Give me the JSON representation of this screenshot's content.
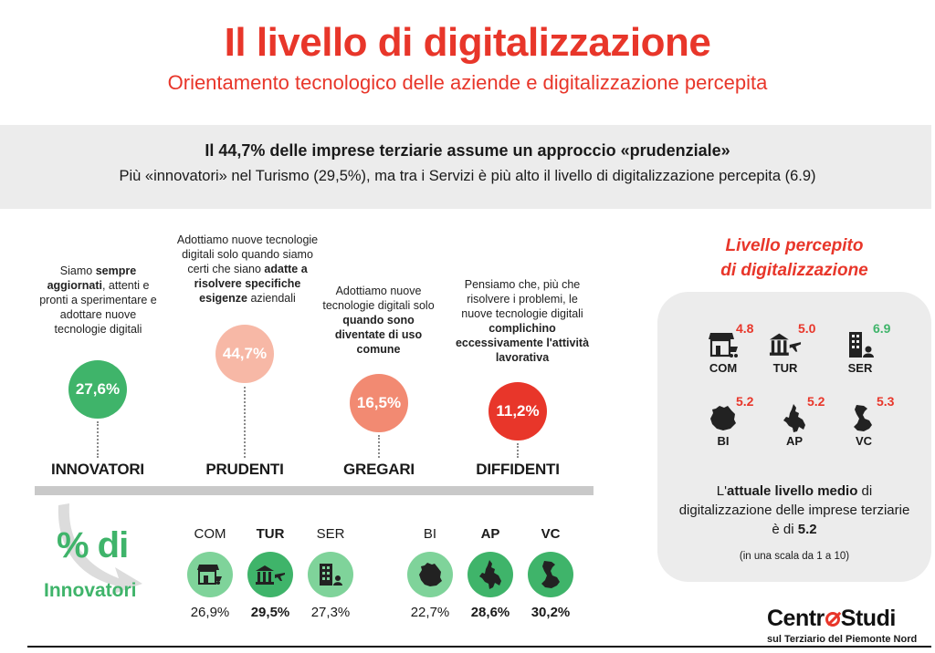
{
  "header": {
    "title": "Il livello di digitalizzazione",
    "subtitle": "Orientamento tecnologico delle aziende e digitalizzazione percepita"
  },
  "banner": {
    "headline": "Il 44,7% delle imprese terziarie assume un approccio «prudenziale»",
    "subline": "Più «innovatori» nel Turismo (29,5%), ma tra i Servizi è più alto il livello di digitalizzazione percepita (6.9)"
  },
  "segments": [
    {
      "desc_parts": [
        "Siamo ",
        "sempre aggiornati",
        ", attenti e pronti a sperimentare e adottare nuove tecnologie digitali"
      ],
      "value": "27,6%",
      "label": "INNOVATORI",
      "color": "#3fb46a"
    },
    {
      "desc_parts": [
        "Adottiamo nuove tecnologie digitali solo quando siamo certi che siano ",
        "adatte a risolvere specifiche esigenze",
        " aziendali"
      ],
      "value": "44,7%",
      "label": "PRUDENTI",
      "color": "#f7b8a6"
    },
    {
      "desc_parts": [
        "Adottiamo nuove tecnologie digitali solo ",
        "quando sono diventate di uso comune",
        ""
      ],
      "value": "16,5%",
      "label": "GREGARI",
      "color": "#f28a72"
    },
    {
      "desc_parts": [
        "Pensiamo che, più che risolvere i problemi, le nuove tecnologie digitali ",
        "complichino eccessivamente l'attività lavorativa",
        ""
      ],
      "value": "11,2%",
      "label": "DIFFIDENTI",
      "color": "#e8362a"
    }
  ],
  "innovators": {
    "big": "% di",
    "word": "Innovatori",
    "sectors": [
      {
        "code": "COM",
        "value": "26,9%",
        "icon": "shop-icon",
        "bold": false
      },
      {
        "code": "TUR",
        "value": "29,5%",
        "icon": "tourism-icon",
        "bold": true
      },
      {
        "code": "SER",
        "value": "27,3%",
        "icon": "services-icon",
        "bold": false
      }
    ],
    "provinces": [
      {
        "code": "BI",
        "value": "22,7%",
        "icon": "biella-map-icon",
        "bold": false
      },
      {
        "code": "AP",
        "value": "28,6%",
        "icon": "alessandria-map-icon",
        "bold": true
      },
      {
        "code": "VC",
        "value": "30,2%",
        "icon": "vercelli-map-icon",
        "bold": true
      }
    ],
    "icon_bg": "#7fd39a"
  },
  "perceived": {
    "title_line1": "Livello percepito",
    "title_line2": "di digitalizzazione",
    "items": [
      {
        "code": "COM",
        "value": "4.8",
        "icon": "shop-icon",
        "color": "#e8362a"
      },
      {
        "code": "TUR",
        "value": "5.0",
        "icon": "tourism-icon",
        "color": "#e8362a"
      },
      {
        "code": "SER",
        "value": "6.9",
        "icon": "services-icon",
        "color": "#3fb46a"
      },
      {
        "code": "BI",
        "value": "5.2",
        "icon": "biella-map-icon",
        "color": "#e8362a"
      },
      {
        "code": "AP",
        "value": "5.2",
        "icon": "alessandria-map-icon",
        "color": "#e8362a"
      },
      {
        "code": "VC",
        "value": "5.3",
        "icon": "vercelli-map-icon",
        "color": "#e8362a"
      }
    ],
    "text_pre": "L'",
    "text_bold": "attuale livello medio",
    "text_mid": " di digitalizzazione delle imprese terziarie è di ",
    "text_value": "5.2",
    "note": "(in una scala da 1 a 10)"
  },
  "logo": {
    "left": "Centr",
    "right": "Studi",
    "sub": "sul Terziario del Piemonte Nord"
  }
}
